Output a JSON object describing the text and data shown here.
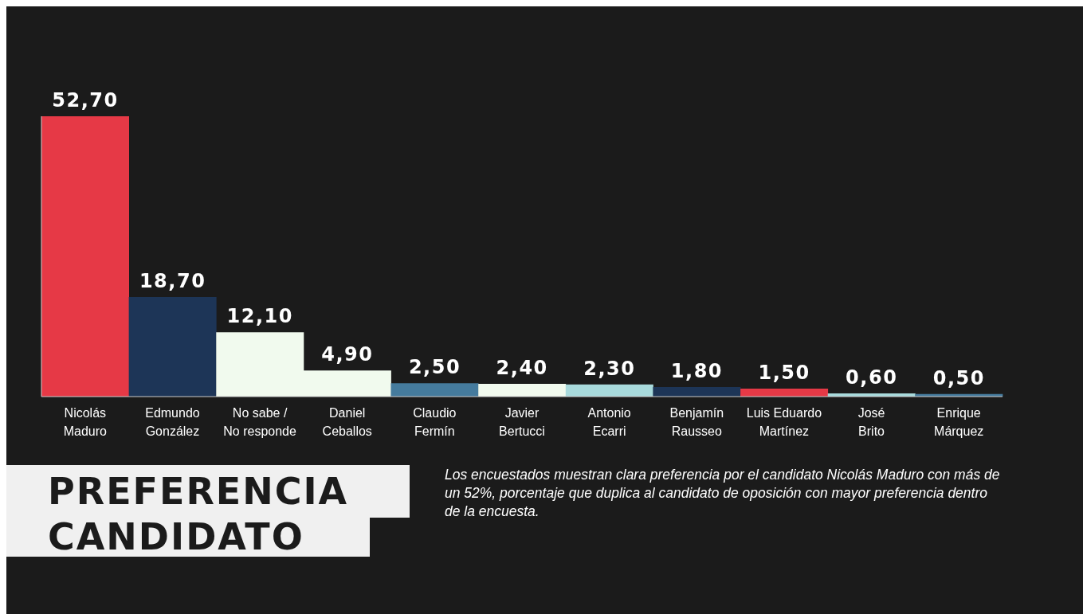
{
  "chart_data": {
    "type": "bar",
    "title": "PREFERENCIA\nCANDIDATO",
    "categories": [
      "Nicolás Maduro",
      "Edmundo González",
      "No sabe / No responde",
      "Daniel Ceballos",
      "Claudio Fermín",
      "Javier Bertucci",
      "Antonio Ecarri",
      "Benjamín Rausseo",
      "Luis Eduardo Martínez",
      "José Brito",
      "Enrique Márquez"
    ],
    "values": [
      52.7,
      18.7,
      12.1,
      4.9,
      2.5,
      2.4,
      2.3,
      1.8,
      1.5,
      0.6,
      0.5
    ],
    "colors": [
      "#e63946",
      "#1d3557",
      "#f1faee",
      "#f1faee",
      "#457b9d",
      "#f1faee",
      "#a8dadc",
      "#1d3557",
      "#e63946",
      "#a8dadc",
      "#457b9d"
    ],
    "value_labels": [
      "52,70",
      "18,70",
      "12,10",
      "4,90",
      "2,50",
      "2,40",
      "2,30",
      "1,80",
      "1,50",
      "0,60",
      "0,50"
    ],
    "tick_labels": "x",
    "grid": false,
    "legend": false,
    "annotations": [
      "Los encuestados muestran clara preferencia por el candidato Nicolás Maduro con más de un 52%, porcentaje que duplica al candidato de oposición con mayor preferencia dentro de la encuesta."
    ]
  }
}
